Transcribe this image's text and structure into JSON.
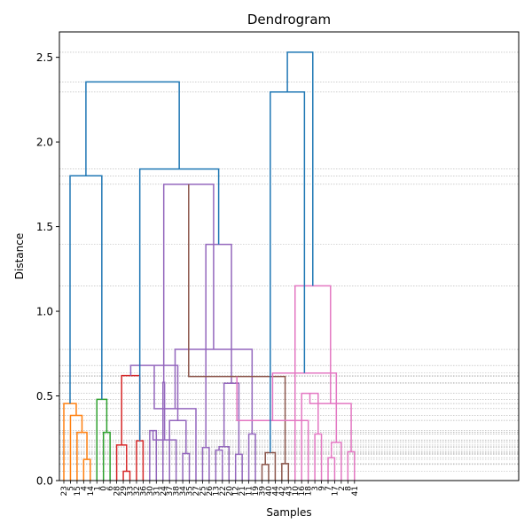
{
  "chart_data": {
    "type": "dendrogram",
    "title": "Dendrogram",
    "xlabel": "Samples",
    "ylabel": "Distance",
    "ylim": [
      0,
      2.65
    ],
    "yticks": [
      0.0,
      0.5,
      1.0,
      1.5,
      2.0,
      2.5
    ],
    "ytick_labels": [
      "0.0",
      "0.5",
      "1.0",
      "1.5",
      "2.0",
      "2.5"
    ],
    "grid": "horizontal-dotted-at-merge-heights",
    "leaves": [
      "23",
      "5",
      "15",
      "4",
      "14",
      "1",
      "0",
      "6",
      "28",
      "29",
      "33",
      "32",
      "36",
      "30",
      "31",
      "24",
      "37",
      "38",
      "34",
      "35",
      "27",
      "25",
      "26",
      "13",
      "22",
      "20",
      "12",
      "21",
      "11",
      "19",
      "39",
      "40",
      "44",
      "42",
      "43",
      "10",
      "16",
      "18",
      "3",
      "9",
      "7",
      "17",
      "2",
      "8",
      "41"
    ],
    "colors": {
      "orange": "#ff7f0e",
      "green": "#2ca02c",
      "red": "#d62728",
      "purple": "#9467bd",
      "brown": "#8c564b",
      "pink": "#e377c2",
      "blue": "#1f77b4"
    },
    "merges": [
      {
        "left": "L:4",
        "right": "L:3",
        "height": 0.125,
        "color": "orange"
      },
      {
        "left": "L:2",
        "right": "M:0",
        "height": 0.285,
        "color": "orange"
      },
      {
        "left": "L:1",
        "right": "M:1",
        "height": 0.385,
        "color": "orange"
      },
      {
        "left": "L:0",
        "right": "M:2",
        "height": 0.455,
        "color": "orange"
      },
      {
        "left": "L:6",
        "right": "L:7",
        "height": 0.285,
        "color": "green"
      },
      {
        "left": "L:5",
        "right": "M:4",
        "height": 0.48,
        "color": "green"
      },
      {
        "left": "L:9",
        "right": "L:10",
        "height": 0.055,
        "color": "red"
      },
      {
        "left": "L:8",
        "right": "M:6",
        "height": 0.21,
        "color": "red"
      },
      {
        "left": "L:11",
        "right": "L:12",
        "height": 0.235,
        "color": "red"
      },
      {
        "left": "M:7",
        "right": "M:8",
        "height": 0.62,
        "color": "red"
      },
      {
        "left": "L:13",
        "right": "L:14",
        "height": 0.295,
        "color": "purple"
      },
      {
        "left": "L:18",
        "right": "L:19",
        "height": 0.16,
        "color": "purple"
      },
      {
        "left": "L:17",
        "right": "M:10",
        "height": 0.24,
        "color": "purple"
      },
      {
        "left": "L:16",
        "right": "M:11",
        "height": 0.355,
        "color": "purple"
      },
      {
        "left": "L:15",
        "right": "M:12",
        "height": 0.58,
        "color": "purple"
      },
      {
        "left": "M:9",
        "right": "M:13",
        "height": 0.68,
        "color": "purple"
      },
      {
        "left": "L:21",
        "right": "L:22",
        "height": 0.195,
        "color": "purple"
      },
      {
        "left": "L:20",
        "right": "M:15",
        "height": 0.425,
        "color": "purple"
      },
      {
        "left": "L:23",
        "right": "L:24",
        "height": 0.18,
        "color": "purple"
      },
      {
        "left": "L:26",
        "right": "L:27",
        "height": 0.155,
        "color": "purple"
      },
      {
        "left": "L:25",
        "right": "M:18",
        "height": 0.2,
        "color": "purple"
      },
      {
        "left": "L:28",
        "right": "L:29",
        "height": 0.275,
        "color": "purple"
      },
      {
        "left": "M:19",
        "right": "M:20",
        "height": 0.575,
        "color": "purple"
      },
      {
        "left": "M:17",
        "right": "M:21",
        "height": 0.775,
        "color": "purple"
      },
      {
        "left": "M:16",
        "right": "M:22",
        "height": 1.395,
        "color": "purple"
      },
      {
        "left": "M:14",
        "right": "M:23",
        "height": 1.75,
        "color": "purple"
      },
      {
        "left": "L:30",
        "right": "L:31",
        "height": 0.095,
        "color": "brown"
      },
      {
        "left": "L:33",
        "right": "L:34",
        "height": 0.1,
        "color": "brown"
      },
      {
        "left": "L:32",
        "right": "M:26",
        "height": 0.165,
        "color": "brown"
      },
      {
        "left": "M:25",
        "right": "M:27",
        "height": 0.615,
        "color": "brown"
      },
      {
        "left": "L:38",
        "right": "L:39",
        "height": 0.275,
        "color": "pink"
      },
      {
        "left": "L:37",
        "right": "M:29",
        "height": 0.355,
        "color": "pink"
      },
      {
        "left": "L:36",
        "right": "M:30",
        "height": 0.515,
        "color": "pink"
      },
      {
        "left": "L:40",
        "right": "L:41",
        "height": 0.135,
        "color": "pink"
      },
      {
        "left": "L:43",
        "right": "L:44",
        "height": 0.17,
        "color": "pink"
      },
      {
        "left": "L:42",
        "right": "M:33",
        "height": 0.225,
        "color": "pink"
      },
      {
        "left": "M:32",
        "right": "M:34",
        "height": 0.455,
        "color": "pink"
      },
      {
        "left": "M:31",
        "right": "M:35",
        "height": 0.635,
        "color": "pink"
      },
      {
        "left": "L:35",
        "right": "M:36",
        "height": 1.15,
        "color": "pink"
      },
      {
        "left": "M:3",
        "right": "M:5",
        "height": 1.8,
        "color": "blue"
      },
      {
        "left": "M:8",
        "right": "M:24",
        "height": 1.84,
        "color": "blue"
      },
      {
        "left": "M:28",
        "right": "M:37",
        "height": 2.295,
        "color": "blue"
      },
      {
        "left": "M:39",
        "right": "M:40",
        "height": 2.355,
        "color": "blue"
      },
      {
        "left": "M:38",
        "right": "M:41",
        "height": 2.53,
        "color": "blue"
      }
    ]
  }
}
